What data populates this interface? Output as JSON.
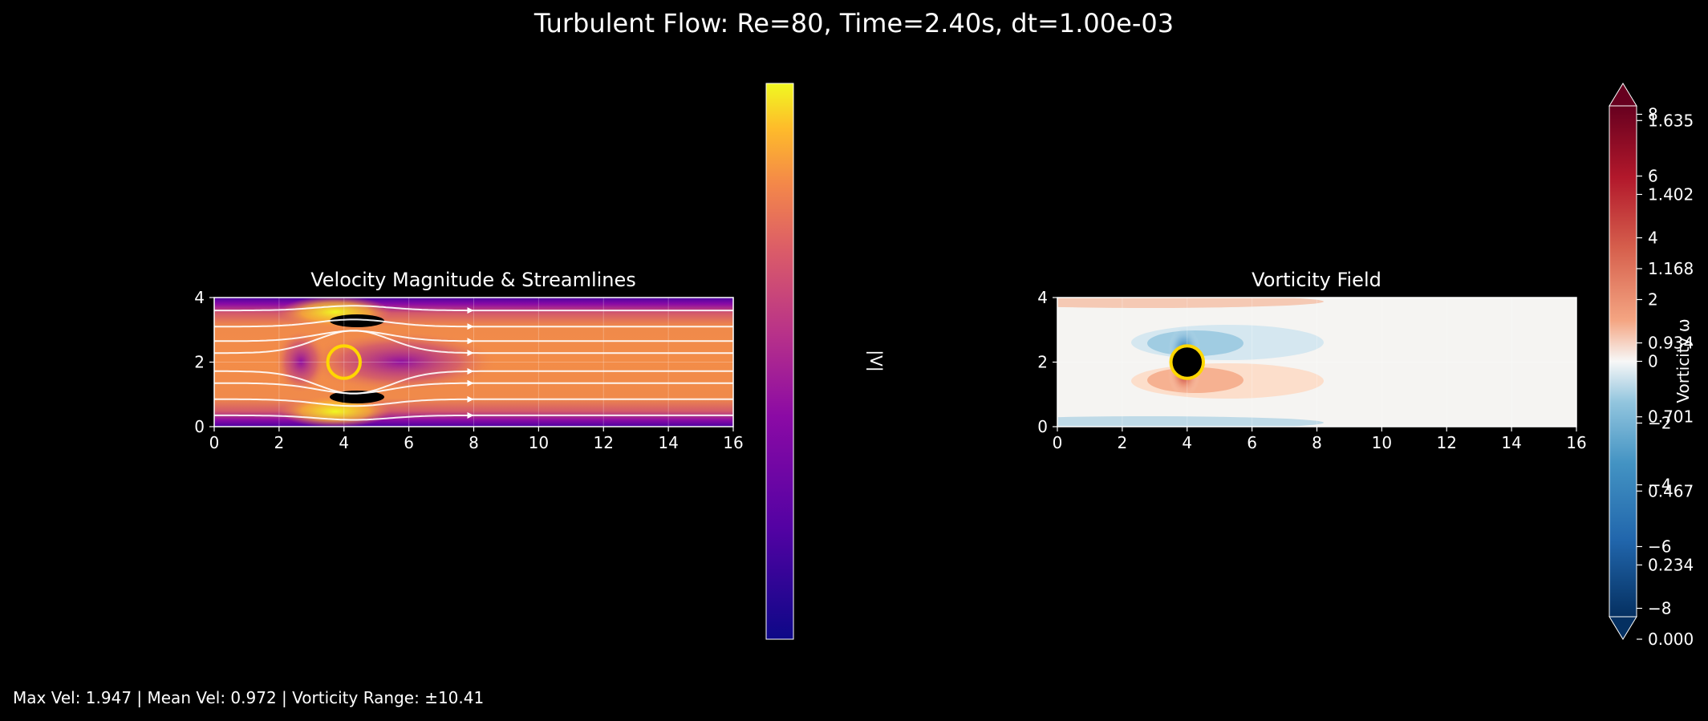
{
  "figure": {
    "title": "Turbulent Flow: Re=80, Time=2.40s, dt=1.00e-03",
    "footer": "Max Vel: 1.947 | Mean Vel: 0.972 | Vorticity Range: ±10.41"
  },
  "chart_data": [
    {
      "type": "heatmap",
      "title": "Velocity Magnitude & Streamlines",
      "xlabel": "",
      "ylabel": "",
      "xlim": [
        0,
        16
      ],
      "ylim": [
        0,
        4
      ],
      "x_ticks": [
        "0",
        "2",
        "4",
        "6",
        "8",
        "10",
        "12",
        "14",
        "16"
      ],
      "y_ticks": [
        "0",
        "2",
        "4"
      ],
      "grid": true,
      "colormap": "plasma",
      "colorbar": {
        "label": "|V|",
        "range": [
          0,
          1.752
        ],
        "ticks": [
          "0.000",
          "0.234",
          "0.467",
          "0.701",
          "0.934",
          "1.168",
          "1.402",
          "1.635"
        ]
      },
      "obstacle": {
        "shape": "circle",
        "center": [
          4,
          2
        ],
        "radius": 0.5,
        "edge_color": "#FFD700"
      },
      "streamline_seed_y": [
        0.35,
        0.85,
        1.35,
        1.72,
        2.28,
        2.65,
        3.1,
        3.6
      ],
      "streamline_color": "#ffffff"
    },
    {
      "type": "heatmap",
      "title": "Vorticity Field",
      "xlabel": "",
      "ylabel": "",
      "xlim": [
        0,
        16
      ],
      "ylim": [
        0,
        4
      ],
      "x_ticks": [
        "0",
        "2",
        "4",
        "6",
        "8",
        "10",
        "12",
        "14",
        "16"
      ],
      "y_ticks": [
        "0",
        "2",
        "4"
      ],
      "grid": true,
      "colormap": "RdBu_r",
      "colorbar": {
        "label": "Vorticity ω",
        "range": [
          -9,
          9
        ],
        "ticks": [
          "−8",
          "−6",
          "−4",
          "−2",
          "0",
          "2",
          "4",
          "6",
          "8"
        ],
        "extend": "both"
      },
      "obstacle": {
        "shape": "circle",
        "center": [
          4,
          2
        ],
        "radius": 0.5,
        "edge_color": "#FFD700"
      }
    }
  ]
}
